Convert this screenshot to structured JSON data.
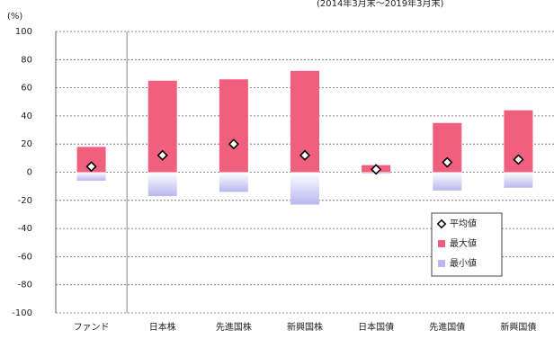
{
  "chart_data": {
    "type": "bar",
    "title": "(2014年3月末～2019年3月末)",
    "y_label": "(%)",
    "categories": [
      "ファンド",
      "日本株",
      "先進国株",
      "新興国株",
      "日本国債",
      "先進国債",
      "新興国債"
    ],
    "series": [
      {
        "name": "平均値",
        "color": "#000000",
        "marker": "diamond",
        "values": [
          4,
          12,
          20,
          12,
          2,
          7,
          9
        ]
      },
      {
        "name": "最大値",
        "color": "#f0607e",
        "values": [
          18,
          65,
          66,
          72,
          5,
          35,
          44
        ]
      },
      {
        "name": "最小値",
        "color": "#b8b8f0",
        "values": [
          -6,
          -17,
          -14,
          -23,
          -1,
          -13,
          -11
        ]
      }
    ],
    "ylim": [
      -100,
      100
    ],
    "yticks": [
      -100,
      -80,
      -60,
      -40,
      -20,
      0,
      20,
      40,
      60,
      80,
      100
    ],
    "grid": true,
    "legend": "lower right"
  }
}
